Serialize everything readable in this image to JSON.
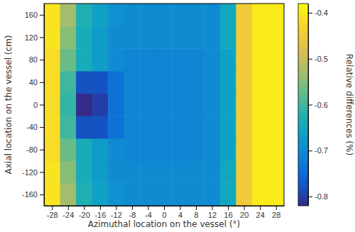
{
  "chart_data": {
    "type": "heatmap",
    "x_label": "Azimuthal location on the vessel (°)",
    "y_label": "Axial location on the vessel (cm)",
    "x": [
      -28,
      -24,
      -20,
      -16,
      -12,
      -8,
      -4,
      0,
      4,
      8,
      12,
      16,
      20,
      24,
      28
    ],
    "y": [
      -160,
      -120,
      -80,
      -40,
      0,
      40,
      80,
      120,
      160
    ],
    "values": [
      [
        -0.41,
        -0.53,
        -0.63,
        -0.66,
        -0.69,
        -0.7,
        -0.7,
        -0.7,
        -0.7,
        -0.7,
        -0.7,
        -0.65,
        -0.45,
        -0.4,
        -0.4
      ],
      [
        -0.41,
        -0.55,
        -0.64,
        -0.67,
        -0.7,
        -0.7,
        -0.7,
        -0.7,
        -0.7,
        -0.7,
        -0.7,
        -0.65,
        -0.45,
        -0.4,
        -0.4
      ],
      [
        -0.42,
        -0.57,
        -0.64,
        -0.67,
        -0.7,
        -0.71,
        -0.71,
        -0.71,
        -0.71,
        -0.71,
        -0.7,
        -0.66,
        -0.45,
        -0.4,
        -0.4
      ],
      [
        -0.42,
        -0.6,
        -0.78,
        -0.78,
        -0.74,
        -0.71,
        -0.71,
        -0.71,
        -0.71,
        -0.71,
        -0.7,
        -0.66,
        -0.45,
        -0.4,
        -0.4
      ],
      [
        -0.42,
        -0.61,
        -0.82,
        -0.8,
        -0.74,
        -0.71,
        -0.71,
        -0.71,
        -0.71,
        -0.71,
        -0.7,
        -0.66,
        -0.45,
        -0.4,
        -0.4
      ],
      [
        -0.42,
        -0.6,
        -0.78,
        -0.78,
        -0.74,
        -0.71,
        -0.71,
        -0.71,
        -0.71,
        -0.71,
        -0.7,
        -0.66,
        -0.45,
        -0.4,
        -0.4
      ],
      [
        -0.42,
        -0.57,
        -0.64,
        -0.67,
        -0.7,
        -0.71,
        -0.71,
        -0.71,
        -0.71,
        -0.71,
        -0.7,
        -0.66,
        -0.45,
        -0.4,
        -0.4
      ],
      [
        -0.41,
        -0.55,
        -0.64,
        -0.67,
        -0.7,
        -0.7,
        -0.7,
        -0.7,
        -0.7,
        -0.7,
        -0.7,
        -0.65,
        -0.45,
        -0.4,
        -0.4
      ],
      [
        -0.41,
        -0.53,
        -0.63,
        -0.66,
        -0.69,
        -0.7,
        -0.7,
        -0.7,
        -0.7,
        -0.7,
        -0.7,
        -0.65,
        -0.45,
        -0.4,
        -0.4
      ]
    ],
    "xlim": [
      -30,
      30
    ],
    "ylim": [
      -180,
      180
    ],
    "xticks": [
      -28,
      -24,
      -20,
      -16,
      -12,
      -8,
      -4,
      0,
      4,
      8,
      12,
      16,
      20,
      24,
      28
    ],
    "yticks": [
      -160,
      -120,
      -80,
      -40,
      0,
      40,
      80,
      120,
      160
    ],
    "colorbar": {
      "label": "Relative differences (%)",
      "range": [
        -0.82,
        -0.38
      ],
      "ticks": [
        -0.8,
        -0.7,
        -0.6,
        -0.5,
        -0.4
      ]
    }
  }
}
